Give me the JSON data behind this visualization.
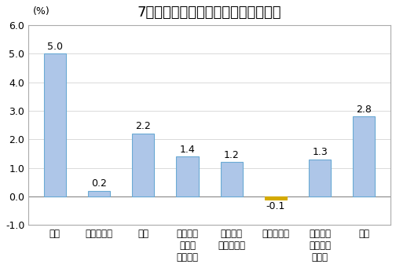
{
  "title": "7月份居民消费价格分类别同比涨跌幅",
  "ylabel": "(%)",
  "categories": [
    "食品",
    "烟酒及用品",
    "衣着",
    "家庭设备\n用品及\n维修服务",
    "医疗保健\n和个人用品",
    "交通和通信",
    "娱乐教育\n文化用品\n及服务",
    "居住"
  ],
  "values": [
    5.0,
    0.2,
    2.2,
    1.4,
    1.2,
    -0.1,
    1.3,
    2.8
  ],
  "bar_colors": [
    "#aec6e8",
    "#aec6e8",
    "#aec6e8",
    "#aec6e8",
    "#aec6e8",
    "#d4aa00",
    "#aec6e8",
    "#aec6e8"
  ],
  "bar_edge_colors": [
    "#6aaad4",
    "#6aaad4",
    "#6aaad4",
    "#6aaad4",
    "#6aaad4",
    "#d4aa00",
    "#6aaad4",
    "#6aaad4"
  ],
  "ylim": [
    -1.0,
    6.0
  ],
  "yticks": [
    -1.0,
    0.0,
    1.0,
    2.0,
    3.0,
    4.0,
    5.0,
    6.0
  ],
  "ytick_labels": [
    "-1.0",
    "0.0",
    "1.0",
    "2.0",
    "3.0",
    "4.0",
    "5.0",
    "6.0"
  ],
  "background_color": "#ffffff",
  "plot_bg_color": "#ffffff",
  "title_fontsize": 13,
  "value_fontsize": 9,
  "tick_fontsize": 8.5
}
